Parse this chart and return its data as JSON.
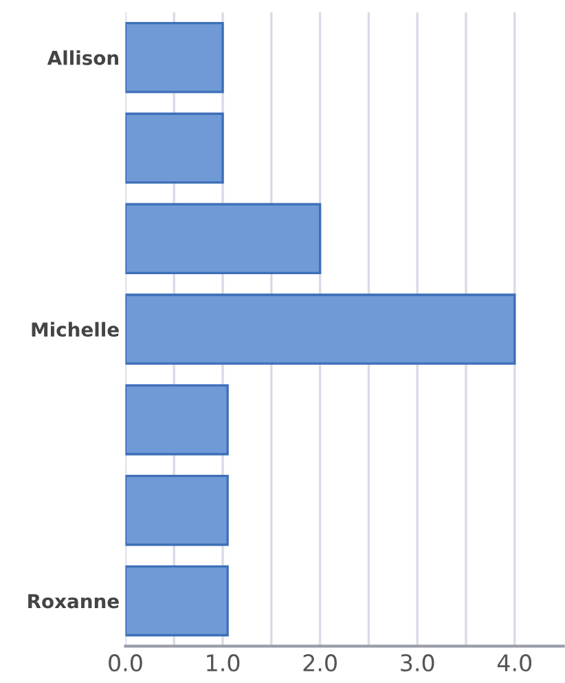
{
  "chart_data": {
    "type": "bar",
    "orientation": "horizontal",
    "categories": [
      "Allison",
      null,
      null,
      "Michelle",
      null,
      null,
      "Roxanne"
    ],
    "values": [
      1.0,
      1.0,
      2.0,
      4.0,
      1.05,
      1.05,
      1.05
    ],
    "color": "#6f9ad6",
    "xlim": [
      0,
      4.5
    ],
    "xticks": [
      {
        "value": 0,
        "label": "0.0"
      },
      {
        "value": 0.5,
        "label": null
      },
      {
        "value": 1,
        "label": "1.0"
      },
      {
        "value": 1.5,
        "label": null
      },
      {
        "value": 2,
        "label": "2.0"
      },
      {
        "value": 2.5,
        "label": null
      },
      {
        "value": 3,
        "label": "3.0"
      },
      {
        "value": 3.5,
        "label": null
      },
      {
        "value": 4,
        "label": "4.0"
      }
    ],
    "grid": "x"
  }
}
